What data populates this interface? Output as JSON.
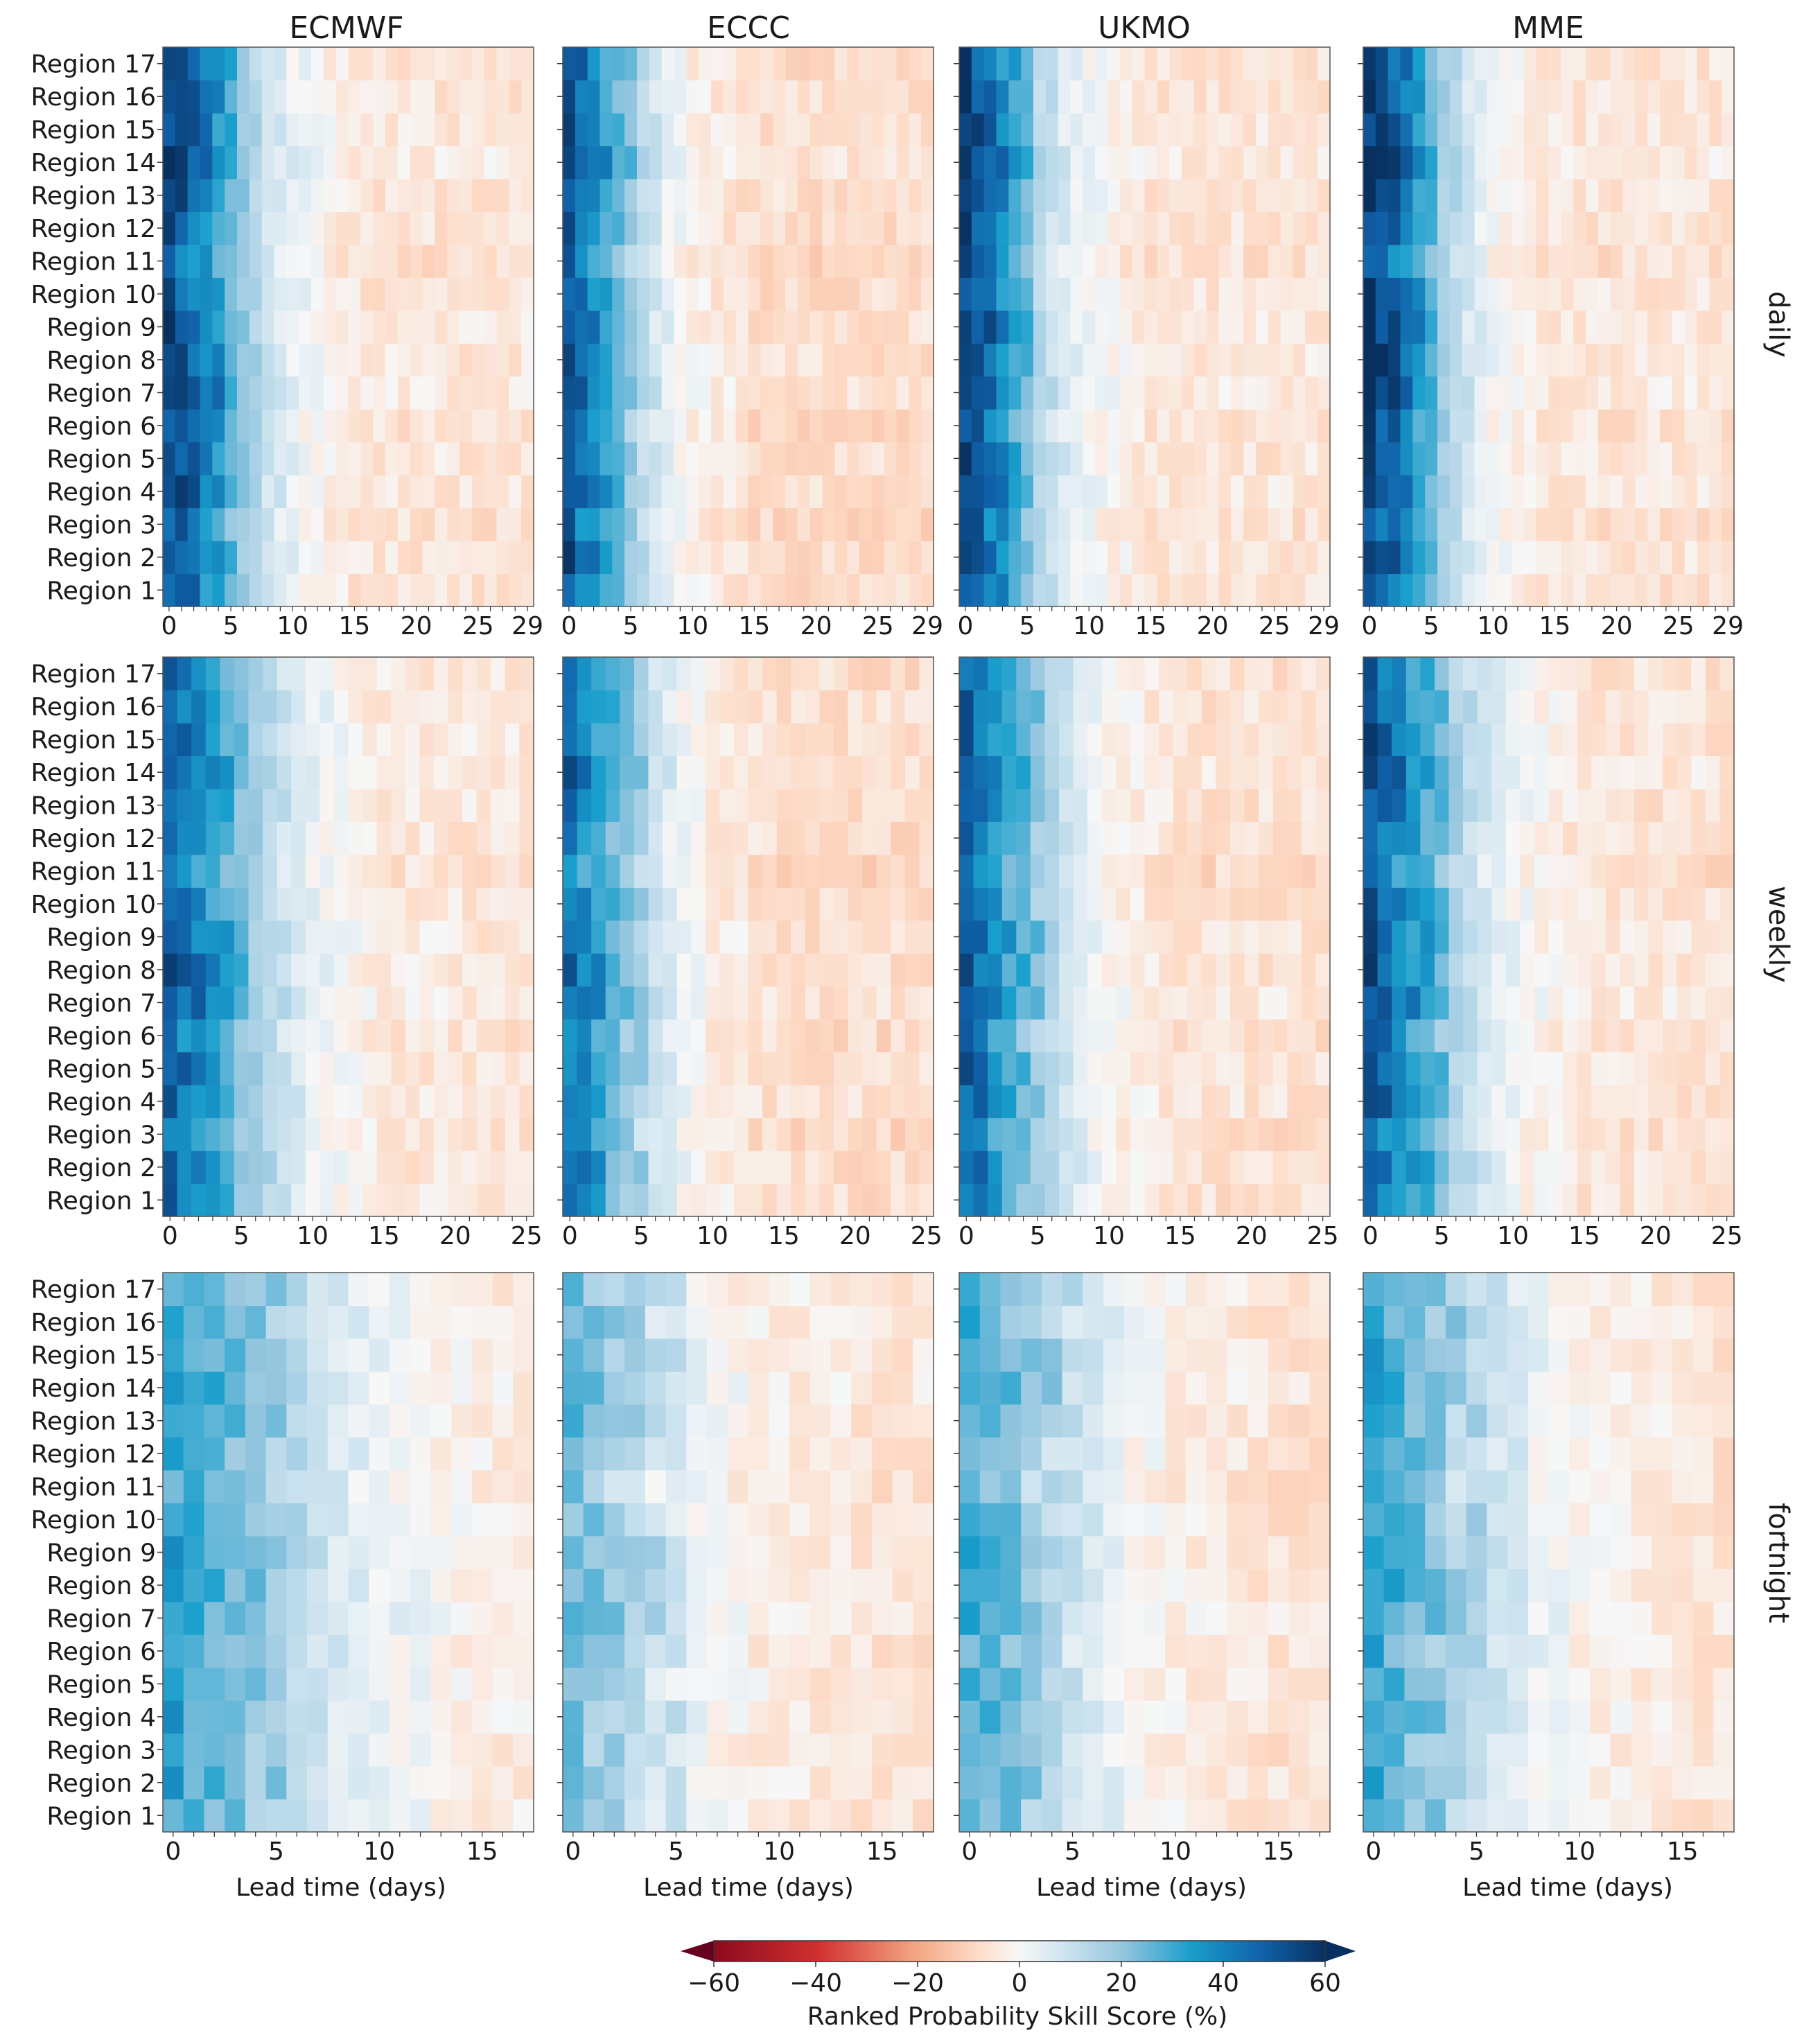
{
  "figure": {
    "columns": [
      "ECMWF",
      "ECCC",
      "UKMO",
      "MME"
    ],
    "rows": [
      "daily",
      "weekly",
      "fortnight"
    ],
    "regions": [
      "Region 1",
      "Region 2",
      "Region 3",
      "Region 4",
      "Region 5",
      "Region 6",
      "Region 7",
      "Region 8",
      "Region 9",
      "Region 10",
      "Region 11",
      "Region 12",
      "Region 13",
      "Region 14",
      "Region 15",
      "Region 16",
      "Region 17"
    ],
    "xlabel": "Lead time (days)",
    "colorbar": {
      "label": "Ranked Probability Skill Score (%)",
      "ticks": [
        "−60",
        "−40",
        "−20",
        "0",
        "20",
        "40",
        "60"
      ],
      "range": [
        -60,
        60
      ],
      "colors_low_to_high": [
        "#67001f",
        "#d6604d",
        "#fddbc7",
        "#f7f7f7",
        "#d1e5f0",
        "#4393c3",
        "#053061"
      ]
    }
  },
  "chart_data": [
    {
      "type": "heatmap",
      "row": "daily",
      "x_ticks": [
        "0",
        "5",
        "10",
        "15",
        "20",
        "25",
        "29"
      ],
      "xlim": [
        0,
        29
      ],
      "y_categories": [
        "Region 1",
        "Region 2",
        "Region 3",
        "Region 4",
        "Region 5",
        "Region 6",
        "Region 7",
        "Region 8",
        "Region 9",
        "Region 10",
        "Region 11",
        "Region 12",
        "Region 13",
        "Region 14",
        "Region 15",
        "Region 16",
        "Region 17"
      ],
      "approx_decay_profile": {
        "description_values_percent_by_lead_bucket": [
          0,
          2,
          4,
          6,
          8,
          10,
          15,
          29
        ],
        "ECMWF": [
          50,
          42,
          32,
          18,
          8,
          2,
          -6,
          -6
        ],
        "ECCC": [
          48,
          36,
          22,
          10,
          2,
          -3,
          -8,
          -8
        ],
        "UKMO": [
          52,
          42,
          28,
          12,
          5,
          0,
          -6,
          -6
        ],
        "MME": [
          52,
          44,
          32,
          16,
          6,
          0,
          -6,
          -6
        ]
      }
    },
    {
      "type": "heatmap",
      "row": "weekly",
      "x_ticks": [
        "0",
        "5",
        "10",
        "15",
        "20",
        "25"
      ],
      "xlim": [
        0,
        25
      ],
      "y_categories": [
        "Region 1",
        "Region 2",
        "Region 3",
        "Region 4",
        "Region 5",
        "Region 6",
        "Region 7",
        "Region 8",
        "Region 9",
        "Region 10",
        "Region 11",
        "Region 12",
        "Region 13",
        "Region 14",
        "Region 15",
        "Region 16",
        "Region 17"
      ],
      "approx_decay_profile": {
        "description_values_percent_by_lead_bucket": [
          0,
          2,
          4,
          6,
          8,
          10,
          15,
          25
        ],
        "ECMWF": [
          44,
          36,
          26,
          16,
          8,
          2,
          -5,
          -6
        ],
        "ECCC": [
          40,
          30,
          18,
          8,
          0,
          -4,
          -8,
          -8
        ],
        "UKMO": [
          44,
          32,
          22,
          12,
          4,
          -2,
          -7,
          -7
        ],
        "MME": [
          46,
          36,
          26,
          14,
          6,
          0,
          -6,
          -7
        ]
      }
    },
    {
      "type": "heatmap",
      "row": "fortnight",
      "x_ticks": [
        "0",
        "5",
        "10",
        "15"
      ],
      "xlim": [
        0,
        17
      ],
      "y_categories": [
        "Region 1",
        "Region 2",
        "Region 3",
        "Region 4",
        "Region 5",
        "Region 6",
        "Region 7",
        "Region 8",
        "Region 9",
        "Region 10",
        "Region 11",
        "Region 12",
        "Region 13",
        "Region 14",
        "Region 15",
        "Region 16",
        "Region 17"
      ],
      "approx_decay_profile": {
        "description_values_percent_by_lead_bucket": [
          0,
          2,
          4,
          6,
          8,
          10,
          15,
          17
        ],
        "ECMWF": [
          30,
          24,
          18,
          12,
          6,
          2,
          -3,
          -4
        ],
        "ECCC": [
          22,
          14,
          8,
          2,
          -2,
          -4,
          -6,
          -6
        ],
        "UKMO": [
          28,
          20,
          12,
          6,
          0,
          -3,
          -6,
          -6
        ],
        "MME": [
          30,
          22,
          14,
          8,
          2,
          -2,
          -5,
          -6
        ]
      }
    }
  ]
}
